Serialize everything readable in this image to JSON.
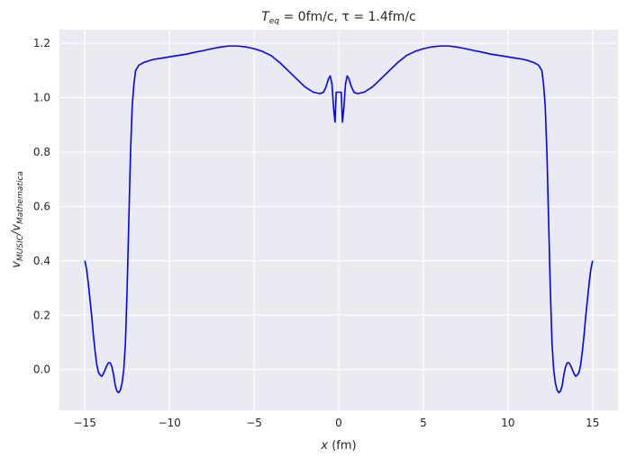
{
  "chart_data": {
    "type": "line",
    "title": {
      "main": "T",
      "sub": "eq",
      "rest": " = 0fm/c, τ = 1.4fm/c"
    },
    "xlabel": {
      "var": "x",
      "unit": " (fm)"
    },
    "ylabel": {
      "num": "v",
      "num_sub": "MUSIC",
      "sep": "/v",
      "den_sub": "Mathematica"
    },
    "xlim": [
      -16.5,
      16.5
    ],
    "ylim": [
      -0.15,
      1.25
    ],
    "xticks": [
      -15,
      -10,
      -5,
      0,
      5,
      10,
      15
    ],
    "xtick_labels": [
      "−15",
      "−10",
      "−5",
      "0",
      "5",
      "10",
      "15"
    ],
    "yticks": [
      0.0,
      0.2,
      0.4,
      0.6,
      0.8,
      1.0,
      1.2
    ],
    "ytick_labels": [
      "0.0",
      "0.2",
      "0.4",
      "0.6",
      "0.8",
      "1.0",
      "1.2"
    ],
    "grid": true,
    "colors": {
      "line": "#0000ff",
      "background": "#eaeaf2",
      "grid": "#ffffff"
    },
    "series": [
      {
        "x": [
          0.0,
          0.08,
          0.15,
          0.22,
          0.3,
          0.4,
          0.5,
          0.6,
          0.75,
          0.9,
          1.1,
          1.5,
          2.0,
          2.5,
          3.0,
          3.5,
          4.0,
          4.5,
          5.0,
          5.5,
          6.0,
          6.5,
          7.0,
          7.5,
          8.0,
          8.5,
          9.0,
          9.5,
          10.0,
          10.5,
          11.0,
          11.5,
          11.8,
          12.0,
          12.1,
          12.2,
          12.3,
          12.4,
          12.5,
          12.6,
          12.7,
          12.8,
          12.9,
          13.0,
          13.1,
          13.2,
          13.3,
          13.4,
          13.5,
          13.6,
          13.7,
          13.8,
          13.9,
          14.0,
          14.1,
          14.2,
          14.3,
          14.4,
          14.5,
          14.6,
          14.7,
          14.8,
          14.9,
          15.0
        ],
        "y": [
          1.02,
          1.02,
          1.02,
          0.91,
          0.96,
          1.05,
          1.08,
          1.07,
          1.04,
          1.02,
          1.015,
          1.02,
          1.04,
          1.07,
          1.1,
          1.13,
          1.155,
          1.17,
          1.18,
          1.187,
          1.19,
          1.19,
          1.186,
          1.18,
          1.173,
          1.167,
          1.16,
          1.155,
          1.15,
          1.145,
          1.14,
          1.13,
          1.12,
          1.1,
          1.05,
          0.97,
          0.8,
          0.55,
          0.3,
          0.1,
          0.0,
          -0.05,
          -0.075,
          -0.085,
          -0.08,
          -0.06,
          -0.02,
          0.01,
          0.025,
          0.025,
          0.015,
          0.0,
          -0.015,
          -0.025,
          -0.02,
          -0.01,
          0.02,
          0.07,
          0.13,
          0.2,
          0.26,
          0.32,
          0.37,
          0.4
        ],
        "mirror": true
      }
    ]
  }
}
